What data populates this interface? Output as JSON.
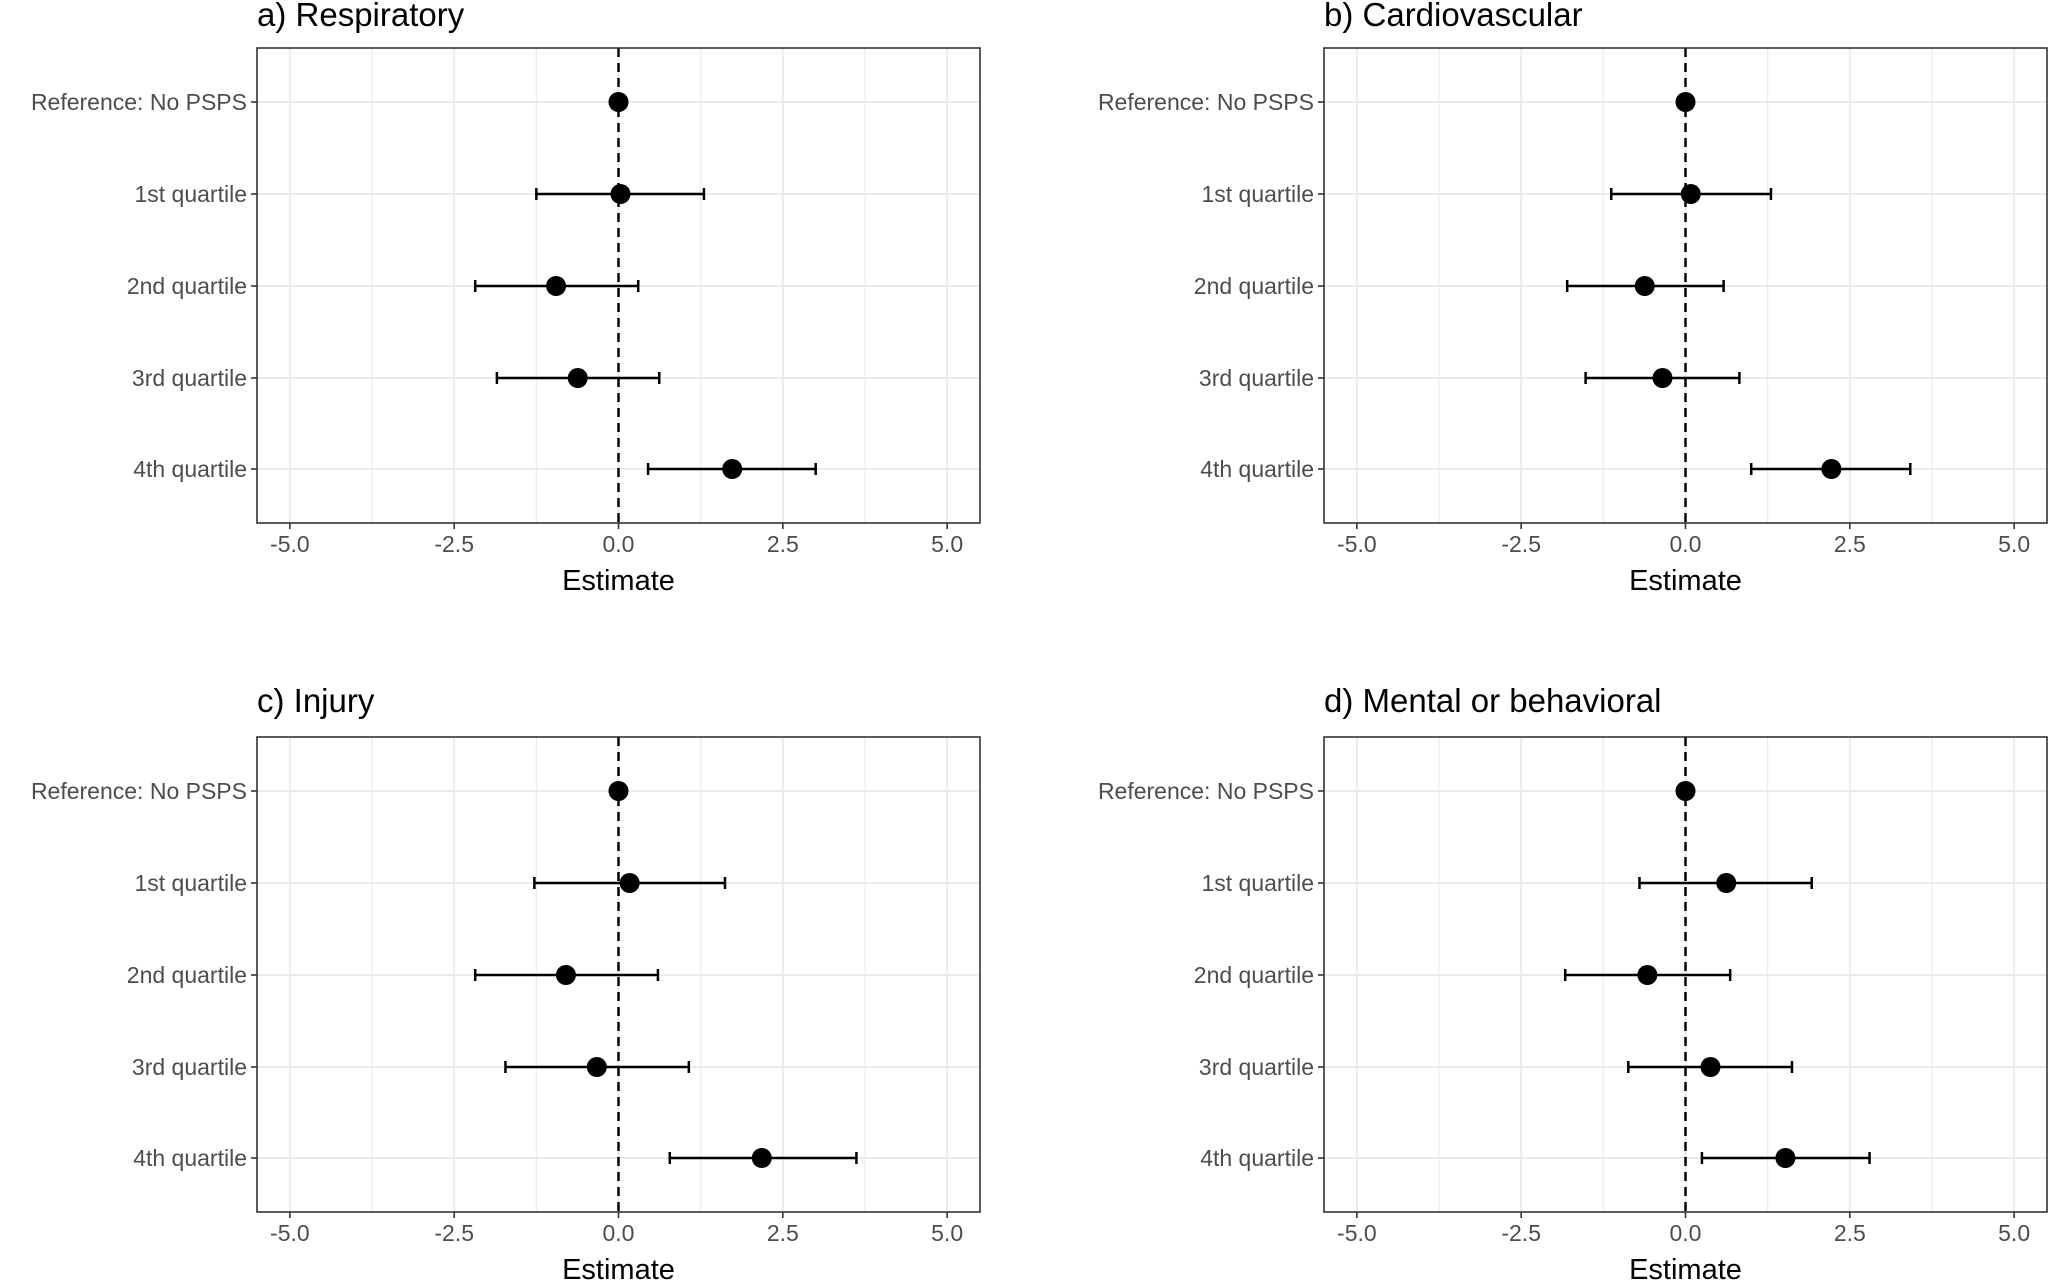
{
  "chart_data": [
    {
      "type": "scatter",
      "title": "a) Respiratory",
      "xlabel": "Estimate",
      "categories": [
        "Reference: No PSPS",
        "1st quartile",
        "2nd quartile",
        "3rd quartile",
        "4th quartile"
      ],
      "x_ticks": [
        "-5.0",
        "-2.5",
        "0.0",
        "2.5",
        "5.0"
      ],
      "xlim": [
        -5.5,
        5.5
      ],
      "reference_line": 0,
      "estimates": [
        0.0,
        0.03,
        -0.95,
        -0.62,
        1.73
      ],
      "lower": [
        null,
        -1.25,
        -2.18,
        -1.85,
        0.45
      ],
      "upper": [
        null,
        1.3,
        0.3,
        0.62,
        3.0
      ]
    },
    {
      "type": "scatter",
      "title": "b) Cardiovascular",
      "xlabel": "Estimate",
      "categories": [
        "Reference: No PSPS",
        "1st quartile",
        "2nd quartile",
        "3rd quartile",
        "4th quartile"
      ],
      "x_ticks": [
        "-5.0",
        "-2.5",
        "0.0",
        "2.5",
        "5.0"
      ],
      "xlim": [
        -5.5,
        5.5
      ],
      "reference_line": 0,
      "estimates": [
        0.0,
        0.08,
        -0.62,
        -0.35,
        2.22
      ],
      "lower": [
        null,
        -1.13,
        -1.8,
        -1.52,
        1.0
      ],
      "upper": [
        null,
        1.3,
        0.58,
        0.82,
        3.42
      ]
    },
    {
      "type": "scatter",
      "title": "c) Injury",
      "xlabel": "Estimate",
      "categories": [
        "Reference: No PSPS",
        "1st quartile",
        "2nd quartile",
        "3rd quartile",
        "4th quartile"
      ],
      "x_ticks": [
        "-5.0",
        "-2.5",
        "0.0",
        "2.5",
        "5.0"
      ],
      "xlim": [
        -5.5,
        5.5
      ],
      "reference_line": 0,
      "estimates": [
        0.0,
        0.17,
        -0.8,
        -0.33,
        2.18
      ],
      "lower": [
        null,
        -1.28,
        -2.18,
        -1.72,
        0.78
      ],
      "upper": [
        null,
        1.62,
        0.6,
        1.07,
        3.62
      ]
    },
    {
      "type": "scatter",
      "title": "d) Mental or behavioral",
      "xlabel": "Estimate",
      "categories": [
        "Reference: No PSPS",
        "1st quartile",
        "2nd quartile",
        "3rd quartile",
        "4th quartile"
      ],
      "x_ticks": [
        "-5.0",
        "-2.5",
        "0.0",
        "2.5",
        "5.0"
      ],
      "xlim": [
        -5.5,
        5.5
      ],
      "reference_line": 0,
      "estimates": [
        0.0,
        0.62,
        -0.58,
        0.38,
        1.52
      ],
      "lower": [
        null,
        -0.7,
        -1.83,
        -0.87,
        0.25
      ],
      "upper": [
        null,
        1.92,
        0.68,
        1.62,
        2.8
      ]
    }
  ],
  "colors": {
    "point": "#000000",
    "grid": "#ebebeb",
    "panel_border": "#333333",
    "label": "#4d4d4d"
  }
}
